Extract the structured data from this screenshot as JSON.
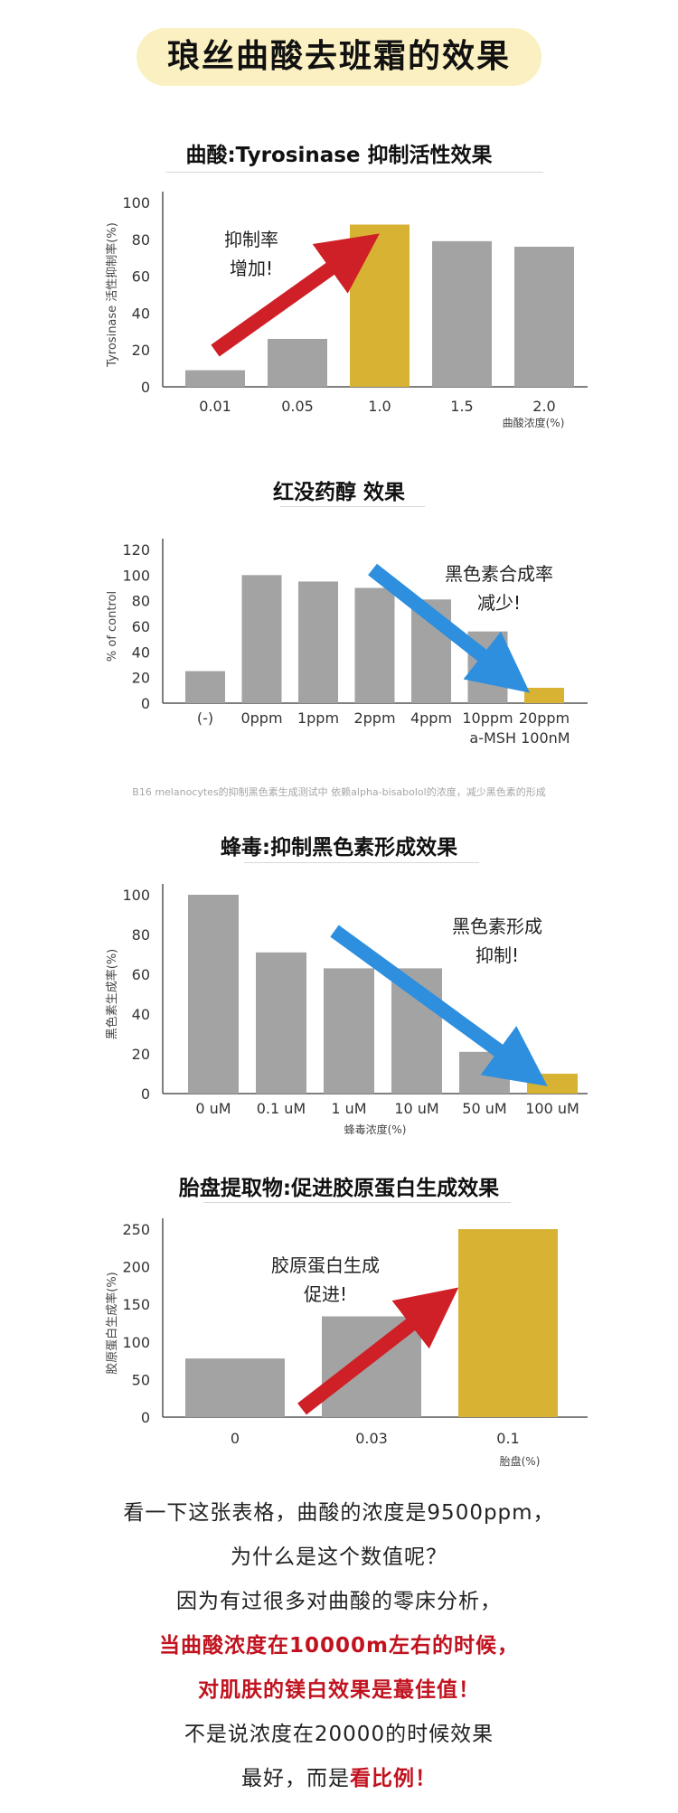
{
  "header": {
    "title": "琅丝曲酸去班霜的效果"
  },
  "colors": {
    "gray": "#a3a3a3",
    "gold": "#d8b232",
    "red_arrow": "#cf2027",
    "blue_arrow": "#2d8fde",
    "axis": "#555555"
  },
  "chart_data": [
    {
      "type": "bar",
      "title": "曲酸:Tyrosinase 抑制活性效果",
      "ylabel": "Tyrosinase 活性抑制率(%)",
      "xunit": "曲酸浓度(%)",
      "categories": [
        "0.01",
        "0.05",
        "1.0",
        "1.5",
        "2.0"
      ],
      "values": [
        9,
        26,
        88,
        79,
        76
      ],
      "highlight_index": 2,
      "ylim": [
        0,
        100
      ],
      "yticks": [
        "0",
        "20",
        "40",
        "60",
        "80",
        "100"
      ],
      "annotation_lines": [
        "抑制率",
        "增加!"
      ],
      "arrow": "red-up"
    },
    {
      "type": "bar",
      "title": "红没药醇 效果",
      "ylabel": "% of control",
      "xunit": "a-MSH 100nM",
      "categories": [
        "(-)",
        "0ppm",
        "1ppm",
        "2ppm",
        "4ppm",
        "10ppm",
        "20ppm"
      ],
      "values": [
        25,
        100,
        95,
        90,
        81,
        56,
        12
      ],
      "highlight_index": 6,
      "ylim": [
        0,
        120
      ],
      "yticks": [
        "0",
        "20",
        "40",
        "60",
        "80",
        "100",
        "120"
      ],
      "annotation_lines": [
        "黑色素合成率",
        "减少!"
      ],
      "arrow": "blue-down",
      "footnote": "B16 melanocytes的抑制黑色素生成测试中 依赖alpha-bisabolol的浓度，减少黑色素的形成"
    },
    {
      "type": "bar",
      "title": "蜂毒:抑制黑色素形成效果",
      "ylabel": "黑色素生成率(%)",
      "xunit": "蜂毒浓度(%)",
      "categories": [
        "0 uM",
        "0.1 uM",
        "1 uM",
        "10 uM",
        "50 uM",
        "100 uM"
      ],
      "values": [
        100,
        71,
        63,
        63,
        21,
        10
      ],
      "highlight_index": 5,
      "ylim": [
        0,
        100
      ],
      "yticks": [
        "0",
        "20",
        "40",
        "60",
        "80",
        "100"
      ],
      "annotation_lines": [
        "黑色素形成",
        "抑制!"
      ],
      "arrow": "blue-down"
    },
    {
      "type": "bar",
      "title": "胎盘提取物:促进胶原蛋白生成效果",
      "ylabel": "胶原蛋白生成率(%)",
      "xunit": "胎盘(%)",
      "categories": [
        "0",
        "0.03",
        "0.1"
      ],
      "values": [
        78,
        134,
        250
      ],
      "highlight_index": 2,
      "ylim": [
        0,
        250
      ],
      "yticks": [
        "0",
        "50",
        "100",
        "150",
        "200",
        "250"
      ],
      "annotation_lines": [
        "胶原蛋白生成",
        "促进!"
      ],
      "arrow": "red-up"
    }
  ],
  "paragraph": {
    "line1": "看一下这张表格，曲酸的浓度是9500ppm，",
    "line2": "为什么是这个数值呢？",
    "line3": "因为有过很多对曲酸的零床分析，",
    "line4": "当曲酸浓度在10000m左右的时候，",
    "line5": "对肌肤的镁白效果是蕞佳值！",
    "line6": "不是说浓度在20000的时候效果",
    "line7_pre": "最好，而是",
    "line7_em": "看比例！"
  }
}
